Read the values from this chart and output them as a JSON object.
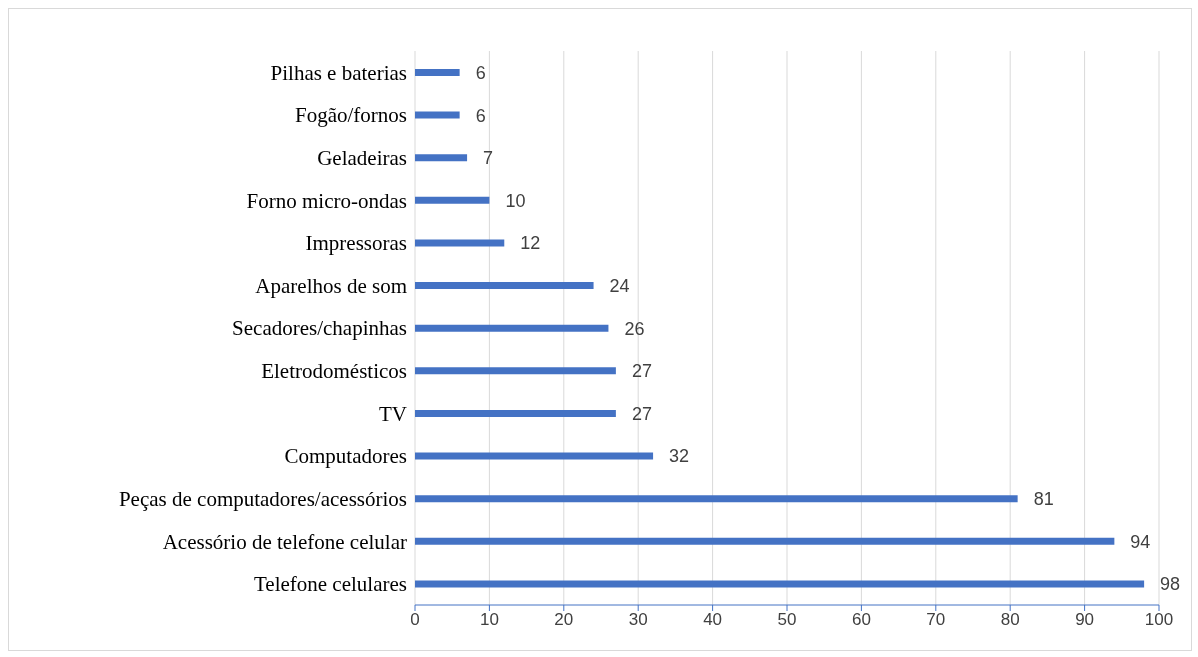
{
  "chart_data": {
    "type": "bar",
    "orientation": "horizontal",
    "categories": [
      "Pilhas e baterias",
      "Fogão/fornos",
      "Geladeiras",
      "Forno micro-ondas",
      "Impressoras",
      "Aparelhos de som",
      "Secadores/chapinhas",
      "Eletrodomésticos",
      "TV",
      "Computadores",
      "Peças de computadores/acessórios",
      "Acessório de telefone celular",
      "Telefone celulares"
    ],
    "values": [
      6,
      6,
      7,
      10,
      12,
      24,
      26,
      27,
      27,
      32,
      81,
      94,
      98
    ],
    "color": "#4472c4",
    "xlim": [
      0,
      100
    ],
    "xticks": [
      0,
      10,
      20,
      30,
      40,
      50,
      60,
      70,
      80,
      90,
      100
    ],
    "grid": "x",
    "data_labels": true
  }
}
